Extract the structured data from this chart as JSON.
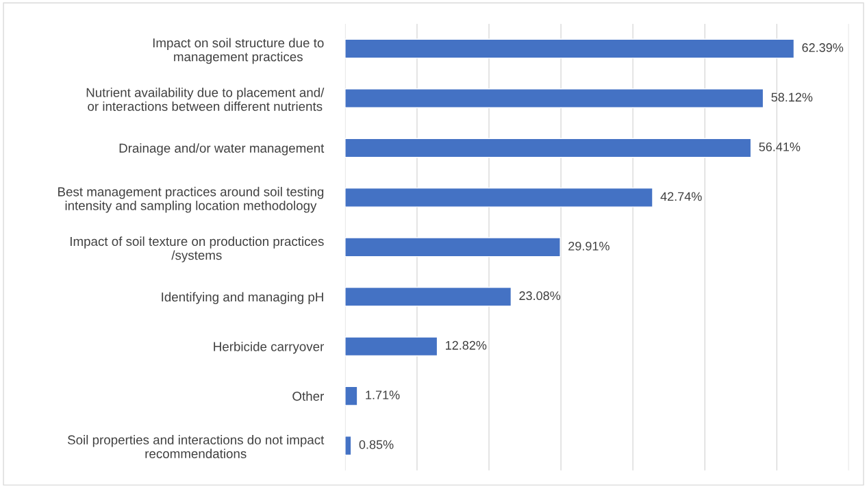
{
  "chart_data": {
    "type": "bar",
    "orientation": "horizontal",
    "categories": [
      "Impact on soil structure due to\nmanagement practices",
      "Nutrient availability due to placement and/\nor interactions between different nutrients",
      "Drainage and/or water management",
      "Best management practices around soil testing\nintensity and sampling location methodology",
      "Impact of soil texture on production practices\n/systems",
      "Identifying and managing pH",
      "Herbicide carryover",
      "Other",
      "Soil properties and interactions do not impact\nrecommendations"
    ],
    "values": [
      62.39,
      58.12,
      56.41,
      42.74,
      29.91,
      23.08,
      12.82,
      1.71,
      0.85
    ],
    "value_labels": [
      "62.39%",
      "58.12%",
      "56.41%",
      "42.74%",
      "29.91%",
      "23.08%",
      "12.82%",
      "1.71%",
      "0.85%"
    ],
    "color": "#4472c4",
    "xlim": [
      0,
      70
    ],
    "xticks": [
      {
        "value": 0,
        "label": null
      },
      {
        "value": 10,
        "label": null
      },
      {
        "value": 20,
        "label": null
      },
      {
        "value": 30,
        "label": null
      },
      {
        "value": 40,
        "label": null
      },
      {
        "value": 50,
        "label": null
      },
      {
        "value": 60,
        "label": null
      },
      {
        "value": 70,
        "label": null
      }
    ],
    "grid": "x",
    "tick_labels": "y"
  }
}
